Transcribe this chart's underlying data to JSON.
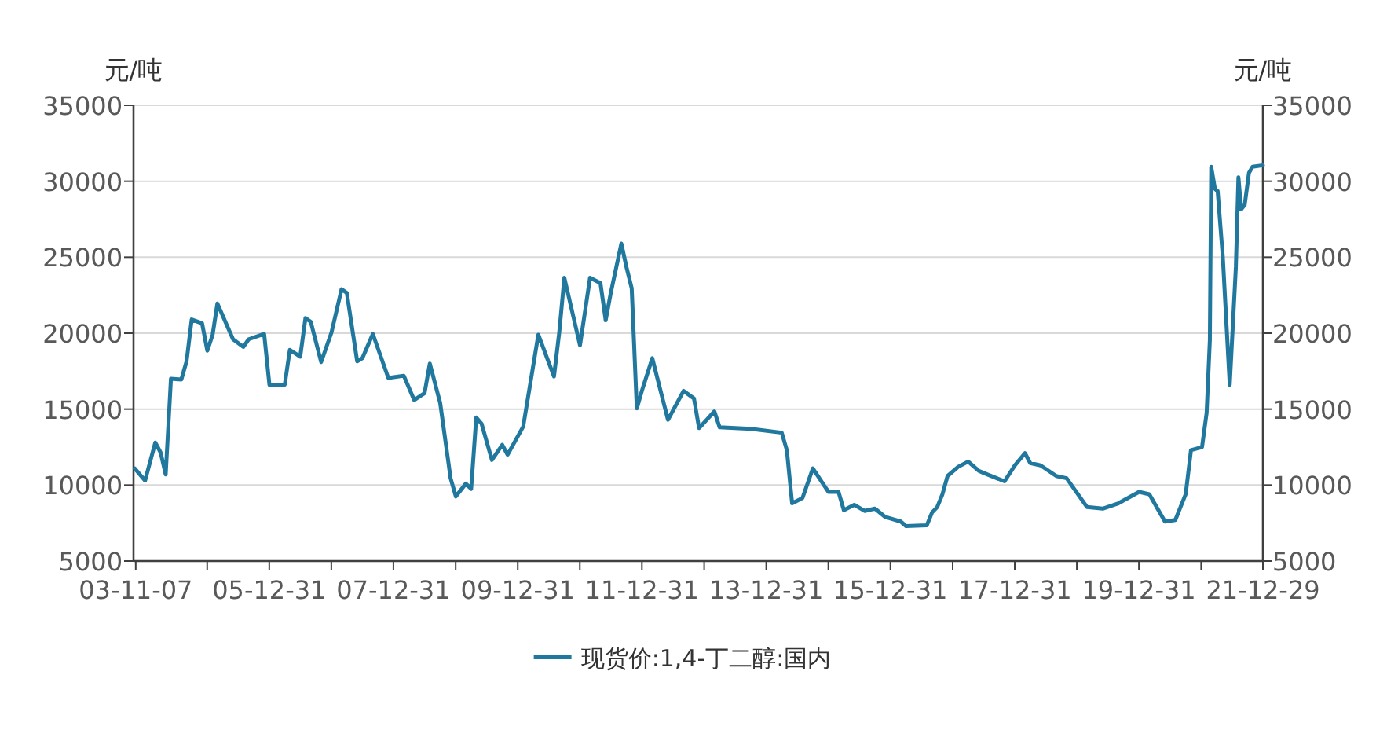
{
  "chart_data": {
    "type": "line",
    "ylabel": "元/吨",
    "y2label": "元/吨",
    "x": [
      "2003-11",
      "2004-01",
      "2004-03",
      "2004-04",
      "2004-05",
      "2004-06",
      "2004-08",
      "2004-09",
      "2004-10",
      "2004-12",
      "2005-01",
      "2005-02",
      "2005-03",
      "2005-06",
      "2005-08",
      "2005-09",
      "2005-12",
      "2006-01",
      "2006-04",
      "2006-05",
      "2006-07",
      "2006-08",
      "2006-09",
      "2006-11",
      "2007-01",
      "2007-03",
      "2007-04",
      "2007-06",
      "2007-07",
      "2007-09",
      "2007-12",
      "2008-03",
      "2008-05",
      "2008-07",
      "2008-08",
      "2008-10",
      "2008-12",
      "2009-01",
      "2009-03",
      "2009-04",
      "2009-05",
      "2009-06",
      "2009-08",
      "2009-10",
      "2009-11",
      "2010-02",
      "2010-05",
      "2010-08",
      "2010-09",
      "2010-10",
      "2011-01",
      "2011-03",
      "2011-05",
      "2011-06",
      "2011-07",
      "2011-09",
      "2011-10",
      "2011-11",
      "2011-12",
      "2012-01",
      "2012-03",
      "2012-06",
      "2012-09",
      "2012-11",
      "2012-12",
      "2013-03",
      "2013-04",
      "2013-10",
      "2014-04",
      "2014-05",
      "2014-06",
      "2014-08",
      "2014-10",
      "2015-01",
      "2015-03",
      "2015-04",
      "2015-06",
      "2015-08",
      "2015-10",
      "2015-12",
      "2016-03",
      "2016-04",
      "2016-08",
      "2016-09",
      "2016-10",
      "2016-11",
      "2016-12",
      "2017-02",
      "2017-04",
      "2017-06",
      "2017-07",
      "2017-11",
      "2018-01",
      "2018-03",
      "2018-04",
      "2018-06",
      "2018-09",
      "2018-11",
      "2019-03",
      "2019-06",
      "2019-09",
      "2020-01",
      "2020-03",
      "2020-06",
      "2020-08",
      "2020-10",
      "2020-11",
      "2021-01-05",
      "2021-02",
      "2021-02-20",
      "2021-02-28",
      "2021-03-22",
      "2021-04-07",
      "2021-05-07",
      "2021-06-17",
      "2021-07-23",
      "2021-08-07",
      "2021-08-23",
      "2021-09-13",
      "2021-10-08",
      "2021-10-29",
      "2021-12-29"
    ],
    "series": [
      {
        "name": "现货价:1,4-丁二醇:国内",
        "color": "#21789e",
        "values": [
          11100,
          10300,
          12800,
          12150,
          10700,
          17000,
          16950,
          18150,
          20900,
          20650,
          18850,
          19900,
          21950,
          19600,
          19100,
          19600,
          19950,
          16600,
          16600,
          18900,
          18450,
          21000,
          20750,
          18100,
          20050,
          22900,
          22650,
          18150,
          18350,
          19950,
          17050,
          17200,
          15600,
          16050,
          18000,
          15400,
          10450,
          9250,
          10100,
          9750,
          14450,
          14050,
          11650,
          12650,
          12000,
          13850,
          19900,
          17150,
          20050,
          23650,
          19200,
          23650,
          23300,
          20850,
          22650,
          25900,
          24350,
          22950,
          15050,
          16250,
          18350,
          14300,
          16200,
          15700,
          13750,
          14850,
          13800,
          13700,
          13450,
          12300,
          8800,
          9150,
          11100,
          9550,
          9550,
          8350,
          8700,
          8300,
          8450,
          7900,
          7600,
          7300,
          7350,
          8200,
          8550,
          9400,
          10600,
          11200,
          11550,
          10950,
          10800,
          10250,
          11300,
          12100,
          11450,
          11300,
          10600,
          10450,
          8550,
          8450,
          8800,
          9550,
          9400,
          7600,
          7700,
          9400,
          12300,
          12500,
          14750,
          19550,
          30950,
          29500,
          29350,
          25050,
          16600,
          24350,
          30250,
          28150,
          28450,
          30550,
          30950,
          31050
        ]
      }
    ],
    "xlim": [
      "2003-10-25",
      "2021-12-29"
    ],
    "xticks": [
      {
        "value": "2003-11-07",
        "label": "03-11-07"
      },
      {
        "value": "2004-12-31",
        "label": null
      },
      {
        "value": "2005-12-31",
        "label": "05-12-31"
      },
      {
        "value": "2006-12-31",
        "label": null
      },
      {
        "value": "2007-12-31",
        "label": "07-12-31"
      },
      {
        "value": "2008-12-31",
        "label": null
      },
      {
        "value": "2009-12-31",
        "label": "09-12-31"
      },
      {
        "value": "2010-12-31",
        "label": null
      },
      {
        "value": "2011-12-31",
        "label": "11-12-31"
      },
      {
        "value": "2012-12-31",
        "label": null
      },
      {
        "value": "2013-12-31",
        "label": "13-12-31"
      },
      {
        "value": "2014-12-31",
        "label": null
      },
      {
        "value": "2015-12-31",
        "label": "15-12-31"
      },
      {
        "value": "2016-12-31",
        "label": null
      },
      {
        "value": "2017-12-31",
        "label": "17-12-31"
      },
      {
        "value": "2018-12-31",
        "label": null
      },
      {
        "value": "2019-12-31",
        "label": "19-12-31"
      },
      {
        "value": "2020-12-31",
        "label": null
      },
      {
        "value": "2021-12-29",
        "label": "21-12-29"
      }
    ],
    "ylim": [
      5000,
      35000
    ],
    "yticks": [
      5000,
      10000,
      15000,
      20000,
      25000,
      30000,
      35000
    ],
    "y2lim": [
      5000,
      35000
    ],
    "y2ticks": [
      5000,
      10000,
      15000,
      20000,
      25000,
      30000,
      35000
    ],
    "grid": "y",
    "legend": "bottom"
  }
}
